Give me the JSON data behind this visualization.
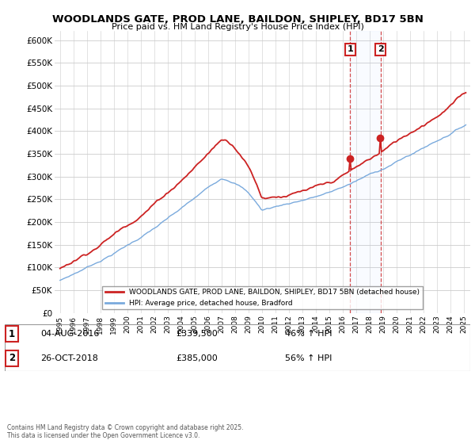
{
  "title": "WOODLANDS GATE, PROD LANE, BAILDON, SHIPLEY, BD17 5BN",
  "subtitle": "Price paid vs. HM Land Registry's House Price Index (HPI)",
  "ylim": [
    0,
    620000
  ],
  "yticks": [
    0,
    50000,
    100000,
    150000,
    200000,
    250000,
    300000,
    350000,
    400000,
    450000,
    500000,
    550000,
    600000
  ],
  "ytick_labels": [
    "£0",
    "£50K",
    "£100K",
    "£150K",
    "£200K",
    "£250K",
    "£300K",
    "£350K",
    "£400K",
    "£450K",
    "£500K",
    "£550K",
    "£600K"
  ],
  "hpi_color": "#7aaadd",
  "price_color": "#cc2222",
  "marker1_date": 2016.58,
  "marker2_date": 2018.82,
  "marker1_price": 339500,
  "marker2_price": 385000,
  "legend_label1": "WOODLANDS GATE, PROD LANE, BAILDON, SHIPLEY, BD17 5BN (detached house)",
  "legend_label2": "HPI: Average price, detached house, Bradford",
  "copyright": "Contains HM Land Registry data © Crown copyright and database right 2025.\nThis data is licensed under the Open Government Licence v3.0.",
  "bg_color": "#ffffff",
  "grid_color": "#cccccc"
}
